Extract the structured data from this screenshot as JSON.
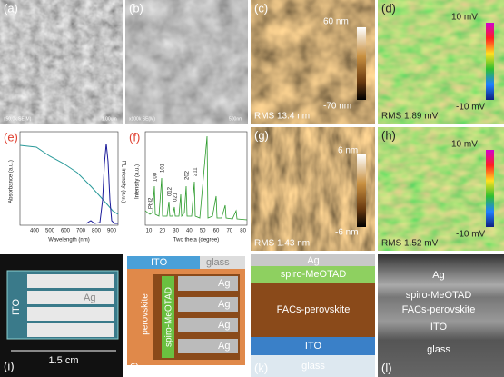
{
  "panel_a": {
    "label": "(a)",
    "info": "x50.0k SE(M)",
    "scale": "1.00um"
  },
  "panel_b": {
    "label": "(b)",
    "info": "x100k SE(M)",
    "scale": "500nm"
  },
  "panel_c": {
    "label": "(c)",
    "bar_top": "60 nm",
    "bar_bottom": "-70 nm",
    "rms": "RMS 13.4 nm"
  },
  "panel_d": {
    "label": "(d)",
    "bar_top": "10 mV",
    "bar_bottom": "-10 mV",
    "rms": "RMS 1.89 mV"
  },
  "panel_e": {
    "label": "(e)",
    "y_label": "Absorbance (a.u.)",
    "y2_label": "PL intensity (a.u.)",
    "x_label": "Wavelength (nm)",
    "x_ticks": [
      "400",
      "500",
      "600",
      "700",
      "800",
      "900"
    ]
  },
  "panel_f": {
    "label": "(f)",
    "y_label": "Intensity (a.u.)",
    "x_label": "Two theta (degree)",
    "x_ticks": [
      "10",
      "20",
      "30",
      "40",
      "50",
      "60",
      "70",
      "80"
    ],
    "peaks": [
      "PbI2",
      "100",
      "101",
      "012",
      "021",
      "202",
      "211"
    ]
  },
  "panel_g": {
    "label": "(g)",
    "bar_top": "6 nm",
    "bar_bottom": "-6 nm",
    "rms": "RMS 1.43 nm"
  },
  "panel_h": {
    "label": "(h)",
    "bar_top": "10 mV",
    "bar_bottom": "-10 mV",
    "rms": "RMS 1.52 mV"
  },
  "panel_i": {
    "label": "(i)",
    "ito": "ITO",
    "ag": "Ag",
    "scale": "1.5 cm"
  },
  "panel_j": {
    "label": "(j)",
    "ito": "ITO",
    "glass": "glass",
    "perovskite": "perovskite",
    "spiro": "spiro-MeOTAD",
    "ag": [
      "Ag",
      "Ag",
      "Ag",
      "Ag"
    ]
  },
  "panel_k": {
    "label": "(k)",
    "layers": [
      "Ag",
      "spiro-MeOTAD",
      "FACs-perovskite",
      "ITO",
      "glass"
    ]
  },
  "panel_l": {
    "label": "(l)",
    "layers": [
      "Ag",
      "spiro-MeOTAD",
      "FACs-perovskite",
      "ITO",
      "glass"
    ]
  }
}
